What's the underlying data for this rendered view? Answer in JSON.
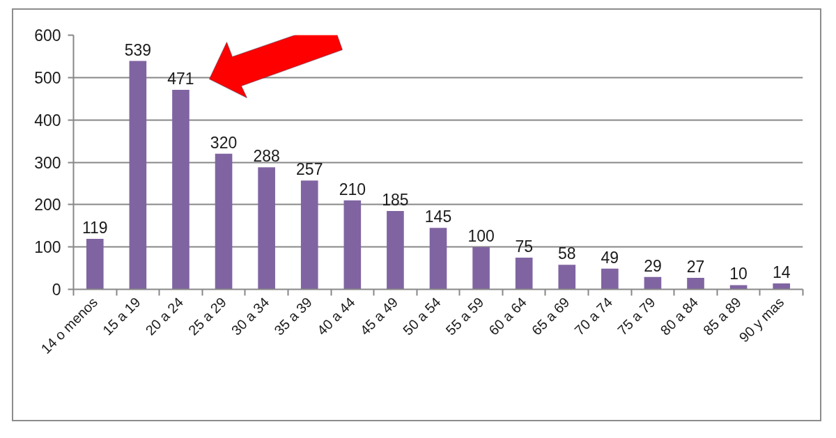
{
  "chart_data": {
    "type": "bar",
    "categories": [
      "14 o menos",
      "15 a 19",
      "20 a 24",
      "25 a 29",
      "30 a 34",
      "35 a 39",
      "40 a 44",
      "45 a 49",
      "50 a 54",
      "55 a 59",
      "60 a 64",
      "65 a 69",
      "70 a 74",
      "75 a 79",
      "80 a 84",
      "85 a 89",
      "90 y mas"
    ],
    "values": [
      119,
      539,
      471,
      320,
      288,
      257,
      210,
      185,
      145,
      100,
      75,
      58,
      49,
      29,
      27,
      10,
      14
    ],
    "color": "#8064a2",
    "ylim": [
      0,
      600
    ],
    "yticks": [
      0,
      100,
      200,
      300,
      400,
      500,
      600
    ],
    "grid": "y",
    "data_labels": true
  }
}
